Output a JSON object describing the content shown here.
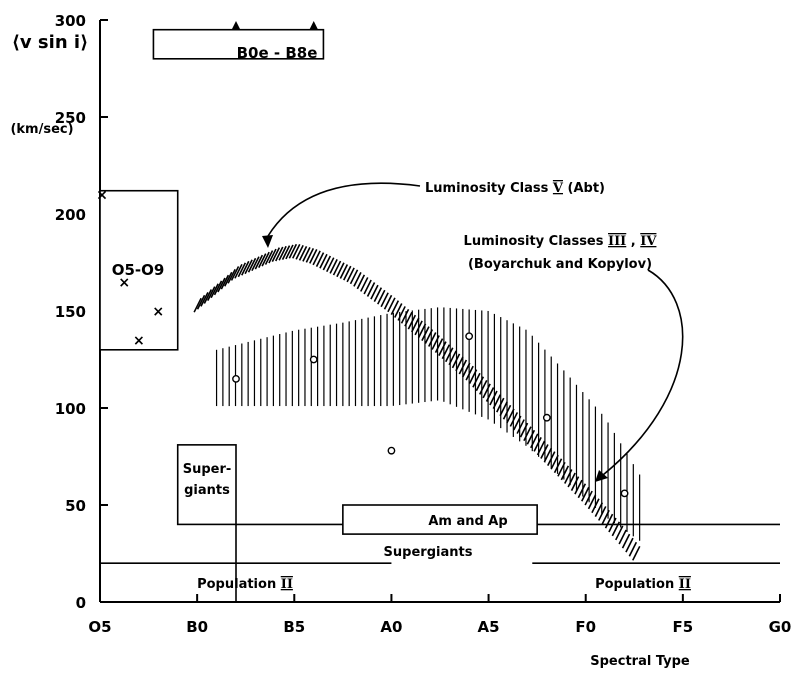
{
  "chart_data": {
    "type": "scatter",
    "title": "",
    "xlabel": "Spectral Type",
    "ylabel": "v sin i",
    "ylabel_unit": "(km/sec)",
    "x_categories": [
      "O5",
      "B0",
      "B5",
      "A0",
      "A5",
      "F0",
      "F5",
      "G0"
    ],
    "ylim": [
      0,
      300
    ],
    "yticks": [
      0,
      50,
      100,
      150,
      200,
      250,
      300
    ],
    "grid": false,
    "series": [
      {
        "name": "Luminosity Class V (Abt)",
        "style": "hatched band",
        "points": [
          [
            1.0,
            153
          ],
          [
            1.4,
            170
          ],
          [
            1.8,
            179
          ],
          [
            2.0,
            181
          ],
          [
            2.2,
            178
          ],
          [
            2.6,
            168
          ],
          [
            3.0,
            153
          ],
          [
            3.4,
            136
          ],
          [
            3.8,
            118
          ],
          [
            4.2,
            97
          ],
          [
            4.6,
            76
          ],
          [
            5.0,
            55
          ],
          [
            5.3,
            38
          ],
          [
            5.55,
            23
          ]
        ]
      },
      {
        "name": "Luminosity Classes III, IV (Boyarchuk and Kopylov)",
        "style": "vertical hatched band",
        "upper": [
          [
            1.2,
            130
          ],
          [
            2.0,
            140
          ],
          [
            2.5,
            144
          ],
          [
            3.0,
            149
          ],
          [
            3.5,
            152
          ],
          [
            4.0,
            150
          ],
          [
            4.4,
            140
          ],
          [
            4.8,
            118
          ],
          [
            5.2,
            95
          ],
          [
            5.6,
            62
          ]
        ],
        "lower": [
          [
            1.2,
            101
          ],
          [
            2.0,
            101
          ],
          [
            2.5,
            101
          ],
          [
            3.0,
            101
          ],
          [
            3.5,
            104
          ],
          [
            4.0,
            94
          ],
          [
            4.4,
            80
          ],
          [
            4.8,
            62
          ],
          [
            5.2,
            44
          ],
          [
            5.6,
            30
          ]
        ]
      },
      {
        "name": "open circles",
        "points": [
          [
            1.4,
            115
          ],
          [
            2.2,
            125
          ],
          [
            3.0,
            78
          ],
          [
            3.8,
            137
          ],
          [
            4.6,
            95
          ],
          [
            5.4,
            56
          ]
        ]
      },
      {
        "name": "O5-O9",
        "points": [
          [
            0.25,
            165
          ],
          [
            0.4,
            135
          ],
          [
            0.6,
            150
          ],
          [
            0.02,
            210
          ]
        ]
      }
    ],
    "regions": [
      {
        "label": "B0e - B8e",
        "x": [
          0.55,
          2.3
        ],
        "y": [
          280,
          295
        ],
        "arrows_at": [
          1.4,
          2.2
        ]
      },
      {
        "label": "O5-O9",
        "x": [
          0.0,
          0.8
        ],
        "y": [
          130,
          212
        ]
      },
      {
        "label": "Super-giants",
        "x": [
          0.8,
          1.4
        ],
        "y": [
          40,
          81
        ]
      },
      {
        "label": "Am and Ap",
        "x": [
          2.5,
          4.5
        ],
        "y": [
          35,
          50
        ]
      },
      {
        "label": "Supergiants",
        "line_y": 40,
        "x": [
          1.2,
          5.8
        ]
      },
      {
        "label": "Population II",
        "line_y": 20,
        "x": [
          0.0,
          2.1
        ],
        "label_x": 1.6
      },
      {
        "label": "Population II",
        "line_y": 20,
        "x": [
          4.5,
          7.0
        ],
        "label_x": 5.7
      }
    ]
  },
  "labels": {
    "y_title": "⟨v sin i⟩",
    "y_unit": "(km/sec)",
    "x_title": "Spectral Type",
    "class_v": "Luminosity Class V (Abt)",
    "class_34_line1": "Luminosity Classes III, IV",
    "class_34_line2": "(Boyarchuk and Kopylov)",
    "o_box": "O5-O9",
    "b_box": "B0e - B8e",
    "supergiants_box_line1": "Super-",
    "supergiants_box_line2": "giants",
    "am_ap": "Am and Ap",
    "supergiants_line": "Supergiants",
    "pop2_left": "Population II",
    "pop2_right": "Population II"
  }
}
